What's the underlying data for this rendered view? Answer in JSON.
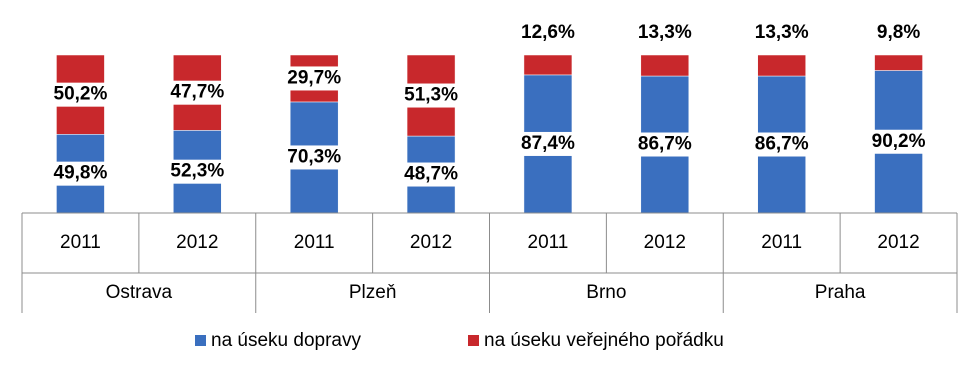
{
  "chart_data": {
    "type": "stacked-bar",
    "categories": [
      "2011",
      "2012",
      "2011",
      "2012",
      "2011",
      "2012",
      "2011",
      "2012"
    ],
    "groups": [
      "Ostrava",
      "Plzeň",
      "Brno",
      "Praha"
    ],
    "series": [
      {
        "name": "na úseku dopravy",
        "color": "#3a6fbf",
        "values": [
          49.8,
          52.3,
          70.3,
          48.7,
          87.4,
          86.7,
          86.7,
          90.2
        ],
        "value_labels": [
          "49,8%",
          "52,3%",
          "70,3%",
          "48,7%",
          "87,4%",
          "86,7%",
          "86,7%",
          "90,2%"
        ]
      },
      {
        "name": "na úseku veřejného pořádku",
        "color": "#c8282c",
        "values": [
          50.2,
          47.7,
          29.7,
          51.3,
          12.6,
          13.3,
          13.3,
          9.8
        ],
        "value_labels": [
          "50,2%",
          "47,7%",
          "29,7%",
          "51,3%",
          "12,6%",
          "13,3%",
          "13,3%",
          "9,8%"
        ]
      }
    ],
    "ylim": [
      0,
      100
    ],
    "legend": "bottom"
  }
}
